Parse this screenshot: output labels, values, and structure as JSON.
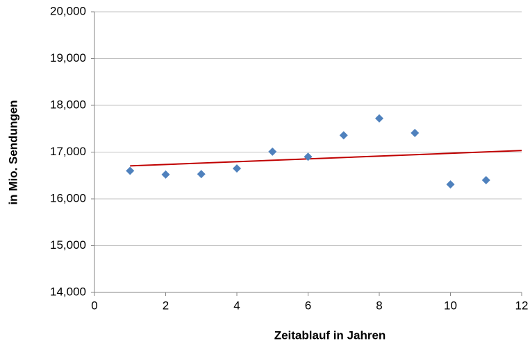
{
  "chart_data": {
    "type": "scatter",
    "x_label": "Zeitablauf in Jahren",
    "y_label": "in Mio. Sendungen",
    "x": [
      1,
      2,
      3,
      4,
      5,
      6,
      7,
      8,
      9,
      10,
      11
    ],
    "values": [
      16600,
      16520,
      16530,
      16650,
      17010,
      16900,
      17360,
      17720,
      17410,
      16310,
      16400
    ],
    "color": "#4f81bd",
    "trendline": {
      "x": [
        1,
        12
      ],
      "values": [
        16705,
        17034
      ],
      "color": "#c00000"
    },
    "xlim": [
      0,
      12
    ],
    "xticks": [
      0,
      2,
      4,
      6,
      8,
      10,
      12
    ],
    "ylim": [
      14000,
      20000
    ],
    "yticks": [
      {
        "value": 14000,
        "label": "14,000"
      },
      {
        "value": 15000,
        "label": "15,000"
      },
      {
        "value": 16000,
        "label": "16,000"
      },
      {
        "value": 17000,
        "label": "17,000"
      },
      {
        "value": 18000,
        "label": "18,000"
      },
      {
        "value": 19000,
        "label": "19,000"
      },
      {
        "value": 20000,
        "label": "20,000"
      }
    ],
    "grid": true
  }
}
